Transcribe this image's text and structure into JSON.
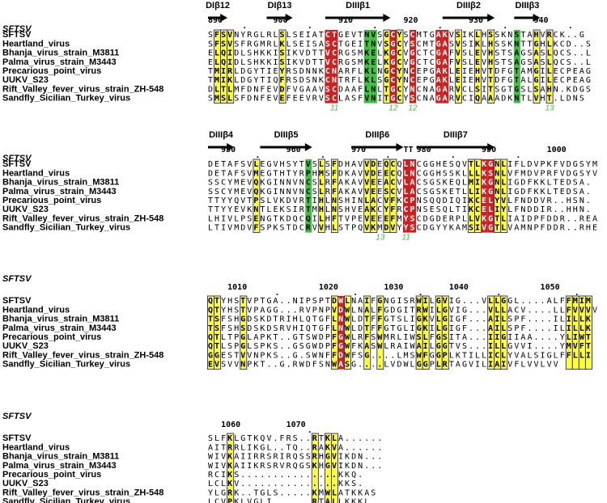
{
  "figure": {
    "start_position": 890,
    "colors": {
      "identical_bg": "#cc1f1f",
      "identical_fg": "#ffffff",
      "similar_bg": "#ffff33",
      "similar_box": "#1f1fcc",
      "green_bg": "#3fbf3f",
      "arrow": "#000000",
      "disulfide_label": "#3fbf3f"
    },
    "blocks": [
      {
        "title": "SFTSV",
        "start": 890,
        "structure": [
          {
            "type": "strand",
            "label": "DIβ12",
            "start": 0,
            "end": 3
          },
          {
            "type": "strand",
            "label": "DIβ13",
            "start": 9,
            "end": 13
          },
          {
            "type": "strand",
            "label": "DIIIβ1",
            "start": 18,
            "end": 28
          },
          {
            "type": "strand",
            "label": "DIIIβ2",
            "start": 36,
            "end": 44
          },
          {
            "type": "strand",
            "label": "DIIIβ3",
            "start": 47,
            "end": 51
          }
        ],
        "ticks": [
          {
            "label": "890",
            "col": 0
          },
          {
            "label": "900",
            "col": 10
          },
          {
            "label": "910",
            "col": 20
          },
          {
            "label": "920",
            "col": 30
          },
          {
            "label": "930",
            "col": 40
          },
          {
            "label": "940",
            "col": 50
          }
        ],
        "dots": [
          5,
          15,
          25,
          35,
          45,
          55
        ],
        "rows": [
          {
            "name": "SFTSV",
            "seq": "SFSVNYRGLRLSLSEIATCTGEVTNVSGCYSCMTGAKVSIKLHSSKNSTAHVRCK..G"
          },
          {
            "name": "Heartland_virus",
            "seq": "SFSVSFRGMRLKLSEISASCTGEITNVSGCYSCMTGASVSIKLHSSKNTTGHLKCD..S"
          },
          {
            "name": "Bhanja_virus_strain_M3811",
            "seq": "ELQIDLSHKKISIKVDTTVCRGSMKELKGCVGCTCGAFVSLEVHSTSAGSASLQCS..L"
          },
          {
            "name": "Palma_virus_strain_M3443",
            "seq": "ELQIDLSHKKISIKVDTTVCRGSMKELKGCVGCTCGAFVSLEVHSTSAGSASLQCS..L"
          },
          {
            "name": "Precarious_point_virus",
            "seq": "TMIRLDGYTIEYRSDNNKCNARFLKLNGCYNCEPGAKLEIEHVTDFGTAMGILECPEAG"
          },
          {
            "name": "UUKV_S23",
            "seq": "TMIKLDGYTIQFRSDSNKCNTRFLKLSGCYNCEPGAKLEIEHVTDFGTALGILECPEAG"
          },
          {
            "name": "Rift_Valley_fever_virus_strain_ZH-548",
            "seq": "DLTLMFDNFEVDFVGAAVSCDAAFLNLTGCYNCNAGARVCLSITSGTGSLSAHN.KDGS"
          },
          {
            "name": "Sandfly_Sicilian_Turkey_virus",
            "seq": "SMSLSFDNFEVEFEEVRVSCLASFVNITGCYSCNAGARVCIQAAADKNTLVHT.LDNS"
          }
        ],
        "marks": [
          {
            "col": 1,
            "kind": "y"
          },
          {
            "col": 2,
            "kind": "y"
          },
          {
            "col": 3,
            "kind": "y"
          },
          {
            "col": 11,
            "kind": "y"
          },
          {
            "col": 18,
            "kind": "r"
          },
          {
            "col": 19,
            "kind": "r"
          },
          {
            "col": 24,
            "kind": "g"
          },
          {
            "col": 25,
            "kind": "g"
          },
          {
            "col": 27,
            "kind": "y"
          },
          {
            "col": 28,
            "kind": "r"
          },
          {
            "col": 29,
            "kind": "y"
          },
          {
            "col": 31,
            "kind": "r"
          },
          {
            "col": 35,
            "kind": "r"
          },
          {
            "col": 36,
            "kind": "r"
          },
          {
            "col": 38,
            "kind": "y"
          },
          {
            "col": 41,
            "kind": "y"
          },
          {
            "col": 43,
            "kind": "y"
          },
          {
            "col": 47,
            "kind": "g"
          },
          {
            "col": 50,
            "kind": "y"
          },
          {
            "col": 52,
            "kind": "y"
          }
        ],
        "disulfide": [
          {
            "label": "11",
            "col": 19
          },
          {
            "label": "12",
            "col": 28
          },
          {
            "label": "12",
            "col": 31
          },
          {
            "label": "13",
            "col": 52
          }
        ]
      },
      {
        "title": "SFTSV",
        "start": 948,
        "structure": [
          {
            "type": "strand",
            "label": "DIIIβ4",
            "start": 0,
            "end": 4
          },
          {
            "type": "strand",
            "label": "DIIIβ5",
            "start": 8,
            "end": 16
          },
          {
            "type": "strand",
            "label": "DIIIβ6",
            "start": 22,
            "end": 30
          },
          {
            "type": "turn",
            "label": "TT",
            "start": 30,
            "end": 31
          },
          {
            "type": "strand",
            "label": "DIIIβ7",
            "start": 32,
            "end": 44
          }
        ],
        "ticks": [
          {
            "label": "950",
            "col": 2
          },
          {
            "label": "960",
            "col": 12
          },
          {
            "label": "970",
            "col": 22
          },
          {
            "label": "980",
            "col": 32
          },
          {
            "label": "990",
            "col": 42
          },
          {
            "label": "1000",
            "col": 52
          }
        ],
        "dots": [
          7,
          17,
          27,
          37,
          47
        ],
        "rows": [
          {
            "name": "SFTSV",
            "seq": "DETAFSVLEGVHSYTVSLSFDHAVVDEQCQLNCGGHESQVTLKGNLIFLDVPKFVDGSYM"
          },
          {
            "name": "Heartland_virus",
            "seq": "DETAFSVMEGTHTYRPHMSFDKAVVDEECQLNCGGHSSKLLLKSNLVFMDVPRFVDGSYV"
          },
          {
            "name": "Bhanja_virus_strain_M3811",
            "seq": "SSCYMEVQKGINNVNCSLRFAKAVVEEACVLACSGSKEQLMIKGNLIGDFKKLTEDSA."
          },
          {
            "name": "Palma_virus_strain_M3443",
            "seq": "SSCYMEVQKGINNVNCSLRFAKAVVEESCVLACSGSKETLLIKGNLIGDFKKLTEDSA."
          },
          {
            "name": "Precarious_point_virus",
            "seq": "TTYYQVTPSLVKDVRTIHLNSHINLACVFKCPNSQQDIQIKCELYVLFNDDVR..HSN."
          },
          {
            "name": "UUKV_S23",
            "seq": "TTYYEVKNTLEKSIRTMHLNSHVEAKCYFRCPNSESQLTIKCELIYLFNDDIR..HHN."
          },
          {
            "name": "Rift_Valley_fever_virus_strain_ZH-548",
            "seq": "LHIVLPSENGTKDQCQILHFTVPEVEEEFMYSCDGDERPLLVKGTLIAIDPFDDR..REA"
          },
          {
            "name": "Sandfly_Sicilian_Turkey_virus",
            "seq": "LTIVMDVFSPKSTDCRVVHLSTPQVKMDVYYSCDGYYKAMSIVGTLVAMNPFDDR..RHE"
          }
        ],
        "marks": [
          {
            "col": 7,
            "kind": "y"
          },
          {
            "col": 15,
            "kind": "g"
          },
          {
            "col": 17,
            "kind": "y"
          },
          {
            "col": 19,
            "kind": "y"
          },
          {
            "col": 24,
            "kind": "y"
          },
          {
            "col": 25,
            "kind": "y"
          },
          {
            "col": 27,
            "kind": "y"
          },
          {
            "col": 28,
            "kind": "y"
          },
          {
            "col": 30,
            "kind": "r"
          },
          {
            "col": 31,
            "kind": "r"
          },
          {
            "col": 40,
            "kind": "y"
          },
          {
            "col": 41,
            "kind": "y"
          },
          {
            "col": 42,
            "kind": "r"
          },
          {
            "col": 43,
            "kind": "r"
          },
          {
            "col": 44,
            "kind": "y"
          },
          {
            "col": 45,
            "kind": "y"
          }
        ],
        "disulfide": [
          {
            "label": "13",
            "col": 26
          },
          {
            "label": "11",
            "col": 30
          }
        ]
      },
      {
        "title": "SFTSV",
        "start": 1007,
        "structure": [],
        "ticks": [
          {
            "label": "1010",
            "col": 3
          },
          {
            "label": "1020",
            "col": 17
          },
          {
            "label": "1030",
            "col": 27
          },
          {
            "label": "1040",
            "col": 37
          },
          {
            "label": "1050",
            "col": 51
          }
        ],
        "dots": [
          10,
          22,
          32,
          44,
          56
        ],
        "rows": [
          {
            "name": "SFTSV",
            "seq": "QTYHSTVPTGA..NIPSPTDWLNAIFGNGISRWILGVIG...VLLGGL....ALFFMIM"
          },
          {
            "name": "Heartland_virus",
            "seq": "QTYHSTVPAGG...RVPNPVDWLNALFGDGITRWILGVIG...VLLACV....LLFVVVV"
          },
          {
            "name": "Bhanja_virus_strain_M3811",
            "seq": "TSFSHGDSKDTRIHLQTGFLNWLDTFFGTSLIGKVLGIGF...AILSPF....ILILLK"
          },
          {
            "name": "Palma_virus_strain_M3443",
            "seq": "TSFSHSDSKDSRVHIQTGFLNWLDTFFGTGLIGKILGIGF...AILSPF....ILILLK"
          },
          {
            "name": "Precarious_point_virus",
            "seq": "QTLTPGLAPKT..GTSWDPFGWLRFSWMRLIWSLFGSITA...IIGIIAA....YLIWT"
          },
          {
            "name": "UUKV_S23",
            "seq": "QTLSPGLSPKS..GSGWDPFGWFKASWLRAIWAILGGTVS...ILLGVVI....YMVFT"
          },
          {
            "name": "Rift_Valley_fever_virus_strain_ZH-548",
            "seq": "GGESTVVNPKS..G.SWNFFDWFSG....LMSWFGGPLKTILLICLYVALSIGLFFLLI"
          },
          {
            "name": "Sandfly_Sicilian_Turkey_virus",
            "seq": "EVSVVNPKT..G.RWDFSNWASG....LVDWLGGPLRTAGVILIAIVFLVVLVV"
          }
        ],
        "marks": [
          {
            "col": 0,
            "kind": "y"
          },
          {
            "col": 1,
            "kind": "y"
          },
          {
            "col": 5,
            "kind": "y"
          },
          {
            "col": 19,
            "kind": "y"
          },
          {
            "col": 20,
            "kind": "r"
          },
          {
            "col": 21,
            "kind": "y"
          },
          {
            "col": 24,
            "kind": "y"
          },
          {
            "col": 26,
            "kind": "y"
          },
          {
            "col": 32,
            "kind": "y"
          },
          {
            "col": 33,
            "kind": "y"
          },
          {
            "col": 35,
            "kind": "y"
          },
          {
            "col": 36,
            "kind": "y"
          },
          {
            "col": 43,
            "kind": "y"
          },
          {
            "col": 44,
            "kind": "y"
          },
          {
            "col": 45,
            "kind": "y"
          },
          {
            "col": 55,
            "kind": "y"
          },
          {
            "col": 56,
            "kind": "y"
          },
          {
            "col": 57,
            "kind": "y"
          },
          {
            "col": 58,
            "kind": "y"
          }
        ],
        "disulfide": []
      },
      {
        "title": "SFTSV",
        "start": 1058,
        "structure": [],
        "ticks": [
          {
            "label": "1060",
            "col": 2
          },
          {
            "label": "1070",
            "col": 12
          }
        ],
        "dots": [
          15
        ],
        "rows": [
          {
            "name": "SFTSV",
            "seq": "SLFKLGTKQV.FRS..RTKLA......"
          },
          {
            "name": "Heartland_virus",
            "seq": "AITRRLIKGL..TQ..RAKVA......"
          },
          {
            "name": "Bhanja_virus_strain_M3811",
            "seq": "WIVKAIIRRSRIRQSSRHGVIKDN..."
          },
          {
            "name": "Palma_virus_strain_M3443",
            "seq": "WIVKAIIKRSRVRQGSKHGVIKDN..."
          },
          {
            "name": "Precarious_point_virus",
            "seq": "RCIKS...............KKQ."
          },
          {
            "name": "UUKV_S23",
            "seq": "LCLKV...............KKS."
          },
          {
            "name": "Rift_Valley_fever_virus_strain_ZH-548",
            "seq": "YLGRK..TGLS.....KMWLATKKAS"
          },
          {
            "name": "Sandfly_Sicilian_Turkey_virus",
            "seq": "LCVPKLVGLI......RTALLKKKL.."
          }
        ],
        "marks": [
          {
            "col": 3,
            "kind": "y"
          },
          {
            "col": 16,
            "kind": "y"
          },
          {
            "col": 18,
            "kind": "y"
          },
          {
            "col": 19,
            "kind": "y"
          }
        ],
        "disulfide": []
      }
    ]
  }
}
